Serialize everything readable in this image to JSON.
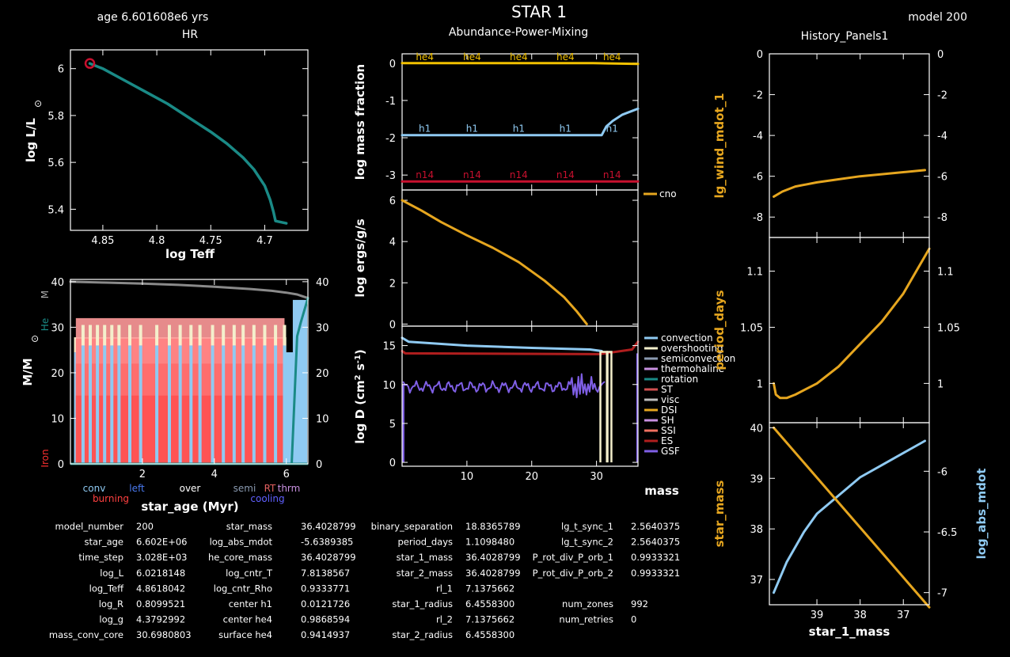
{
  "header": {
    "star_title": "STAR  1",
    "age_label": "age 6.601608e6 yrs",
    "model_label": "model 200",
    "subtitle_abundance": "Abundance-Power-Mixing",
    "subtitle_history": "History_Panels1"
  },
  "colors": {
    "teal": "#1a8a86",
    "orange": "#e6a61f",
    "gold": "#f2c100",
    "lightblue": "#8fcaf2",
    "crimson": "#c8102e",
    "purple": "#7f5fe6",
    "grey": "#8a8a8a",
    "cream": "#f4efcc",
    "conv_fill": "#8fcaf2",
    "burning_fill": "#ff3030"
  },
  "chart_data": [
    {
      "id": "hr",
      "type": "line",
      "title": "HR",
      "xlabel": "log Teff",
      "ylabel": "log L/L",
      "ylabel_sub": "⊙",
      "xlim": [
        4.88,
        4.66
      ],
      "ylim": [
        5.31,
        6.08
      ],
      "xticks": [
        "4.85",
        "4.8",
        "4.75",
        "4.7"
      ],
      "xtick_values": [
        4.85,
        4.8,
        4.75,
        4.7
      ],
      "yticks": [
        "5.4",
        "5.6",
        "5.8",
        "6"
      ],
      "ytick_values": [
        5.4,
        5.6,
        5.8,
        6.0
      ],
      "series": [
        {
          "x": [
            4.862,
            4.85,
            4.83,
            4.81,
            4.79,
            4.77,
            4.75,
            4.735,
            4.72,
            4.71,
            4.7,
            4.695,
            4.692,
            4.69,
            4.68
          ],
          "y": [
            6.022,
            6.0,
            5.95,
            5.9,
            5.85,
            5.79,
            5.73,
            5.68,
            5.62,
            5.57,
            5.5,
            5.44,
            5.39,
            5.35,
            5.34
          ]
        }
      ],
      "marker": {
        "x": 4.862,
        "y": 6.022
      }
    },
    {
      "id": "kippenhahn",
      "type": "area",
      "xlabel": "star_age (Myr)",
      "ylabel": "M/M",
      "ylabel_sub": "⊙",
      "xlim": [
        0,
        6.6
      ],
      "ylim": [
        0,
        40.5
      ],
      "xticks": [
        "2",
        "4",
        "6"
      ],
      "xtick_values": [
        2,
        4,
        6
      ],
      "yticks": [
        "0",
        "10",
        "20",
        "30",
        "40"
      ],
      "ytick_values": [
        0,
        10,
        20,
        30,
        40
      ],
      "left_tags": [
        "M",
        "He",
        "Iron"
      ],
      "mtotal": {
        "x": [
          0,
          1,
          2,
          3,
          4,
          5,
          5.6,
          6,
          6.3,
          6.6
        ],
        "y": [
          40,
          39.8,
          39.6,
          39.3,
          38.9,
          38.4,
          38,
          37.6,
          37.2,
          36.4
        ]
      },
      "he_core": {
        "x": [
          6.15,
          6.3,
          6.4,
          6.55,
          6.6
        ],
        "y": [
          0,
          28,
          31,
          35,
          36.4
        ]
      },
      "legend": [
        {
          "label": "conv",
          "color": "#8fcaf2"
        },
        {
          "label": "left",
          "color": "#4a7af0"
        },
        {
          "label": "over",
          "color": "#ffffff"
        },
        {
          "label": "semi",
          "color": "#8a9ab0"
        },
        {
          "label": "RT",
          "color": "#e36060"
        },
        {
          "label": "thrm",
          "color": "#c890e0"
        },
        {
          "label": "burning",
          "color": "#ff4040"
        },
        {
          "label": "cooling",
          "color": "#6060ff"
        }
      ]
    },
    {
      "id": "abundance",
      "type": "line",
      "ylabel": "log mass fraction",
      "xlim": [
        0,
        36.4
      ],
      "ylim": [
        -3.4,
        0.25
      ],
      "yticks": [
        "0",
        "-1",
        "-2",
        "-3"
      ],
      "ytick_values": [
        0,
        -1,
        -2,
        -3
      ],
      "series": [
        {
          "name": "he4",
          "x": [
            0,
            29.5,
            36.4
          ],
          "y": [
            0.0,
            0.0,
            -0.02
          ]
        },
        {
          "name": "h1",
          "x": [
            0,
            30.8,
            31.5,
            32.5,
            34,
            36.4
          ],
          "y": [
            -1.93,
            -1.93,
            -1.7,
            -1.55,
            -1.38,
            -1.22
          ]
        },
        {
          "name": "n14",
          "x": [
            0,
            36.4
          ],
          "y": [
            -3.17,
            -3.17
          ]
        }
      ]
    },
    {
      "id": "power",
      "type": "line",
      "ylabel": "log ergs/g/s",
      "xlim": [
        0,
        36.4
      ],
      "ylim": [
        -0.1,
        6.5
      ],
      "yticks": [
        "0",
        "2",
        "4",
        "6"
      ],
      "ytick_values": [
        0,
        2,
        4,
        6
      ],
      "series": [
        {
          "name": "cno",
          "x": [
            0,
            3,
            6,
            10,
            14,
            18,
            22,
            25,
            27,
            28.5
          ],
          "y": [
            6.0,
            5.5,
            4.95,
            4.3,
            3.7,
            3.0,
            2.1,
            1.3,
            0.6,
            0.0
          ]
        }
      ]
    },
    {
      "id": "mixing",
      "type": "line",
      "ylabel": "log D (cm",
      "xlabel": "mass",
      "xlim": [
        0,
        36.4
      ],
      "ylim": [
        -0.5,
        17.5
      ],
      "xticks": [
        "10",
        "20",
        "30"
      ],
      "xtick_values": [
        10,
        20,
        30
      ],
      "yticks": [
        "0",
        "5",
        "10",
        "15"
      ],
      "ytick_values": [
        0,
        5,
        10,
        15
      ],
      "series": [
        {
          "name": "convection",
          "x": [
            0,
            1,
            10,
            20,
            29,
            30.8
          ],
          "y": [
            16.0,
            15.5,
            15.0,
            14.7,
            14.5,
            14.3
          ]
        },
        {
          "name": "ES",
          "x": [
            0,
            0.5,
            30.5,
            35.5,
            36.4
          ],
          "y": [
            14.3,
            14.0,
            13.9,
            14.5,
            15.5
          ]
        },
        {
          "name": "GSF",
          "x": [
            0,
            31.2
          ],
          "y": [
            9.6,
            10.2
          ]
        }
      ],
      "legend": [
        {
          "label": "convection",
          "color": "#8fcaf2"
        },
        {
          "label": "overshooting",
          "color": "#f4efcc"
        },
        {
          "label": "semiconvection",
          "color": "#8a9ab0"
        },
        {
          "label": "thermohaline",
          "color": "#c890e0"
        },
        {
          "label": "rotation",
          "color": "#1a8a86"
        },
        {
          "label": "ST",
          "color": "#d05050"
        },
        {
          "label": "visc",
          "color": "#bbbbbb"
        },
        {
          "label": "DSI",
          "color": "#e6a61f"
        },
        {
          "label": "SH",
          "color": "#c890e0"
        },
        {
          "label": "SSI",
          "color": "#f07060"
        },
        {
          "label": "ES",
          "color": "#b01e1e"
        },
        {
          "label": "GSF",
          "color": "#7f5fe6"
        }
      ]
    },
    {
      "id": "hist_wind",
      "type": "line",
      "ylabel": "lg_wind_mdot_1",
      "xlim": [
        40.1,
        36.4
      ],
      "ylim": [
        -9,
        0
      ],
      "yticks": [
        "0",
        "-2",
        "-4",
        "-6",
        "-8"
      ],
      "ytick_values": [
        0,
        -2,
        -4,
        -6,
        -8
      ],
      "series": [
        {
          "x": [
            40,
            39.8,
            39.5,
            39,
            38.5,
            38,
            37.5,
            37,
            36.5
          ],
          "y": [
            -7.0,
            -6.75,
            -6.5,
            -6.3,
            -6.15,
            -6.0,
            -5.9,
            -5.8,
            -5.7
          ]
        }
      ]
    },
    {
      "id": "hist_period",
      "type": "line",
      "ylabel": "period_days",
      "xlim": [
        40.1,
        36.4
      ],
      "ylim": [
        0.965,
        1.13
      ],
      "yticks": [
        "1.1",
        "1.05",
        "1"
      ],
      "ytick_values": [
        1.1,
        1.05,
        1.0
      ],
      "series": [
        {
          "x": [
            40,
            39.95,
            39.85,
            39.7,
            39.5,
            39,
            38.5,
            38,
            37.5,
            37,
            36.7,
            36.4
          ],
          "y": [
            1.0,
            0.99,
            0.987,
            0.987,
            0.99,
            1.0,
            1.015,
            1.035,
            1.055,
            1.08,
            1.1,
            1.12
          ]
        }
      ]
    },
    {
      "id": "hist_mass",
      "type": "line",
      "ylabel": "star_mass",
      "ylabel_right": "log_abs_mdot",
      "xlabel": "star_1_mass",
      "xlim": [
        40.1,
        36.4
      ],
      "ylim": [
        36.5,
        40.1
      ],
      "y2lim": [
        -7.1,
        -5.6
      ],
      "xticks": [
        "39",
        "38",
        "37"
      ],
      "xtick_values": [
        39,
        38,
        37
      ],
      "yticks": [
        "40",
        "39",
        "38",
        "37"
      ],
      "ytick_values": [
        40,
        39,
        38,
        37
      ],
      "y2ticks": [
        "-6",
        "-6.5",
        "-7"
      ],
      "y2tick_values": [
        -6,
        -6.5,
        -7
      ],
      "series": [
        {
          "name": "star_mass",
          "x": [
            40,
            36.4
          ],
          "y": [
            40,
            36.45
          ]
        },
        {
          "name": "log_abs_mdot",
          "x": [
            40,
            39.7,
            39.3,
            39,
            38.5,
            38,
            37.5,
            37,
            36.5
          ],
          "y": [
            -7.0,
            -6.75,
            -6.5,
            -6.35,
            -6.2,
            -6.05,
            -5.95,
            -5.85,
            -5.75
          ]
        }
      ]
    }
  ],
  "info_table": [
    [
      {
        "k": "model_number",
        "v": "200"
      },
      {
        "k": "star_age",
        "v": "6.602E+06"
      },
      {
        "k": "time_step",
        "v": "3.028E+03"
      },
      {
        "k": "log_L",
        "v": "6.0218148"
      },
      {
        "k": "log_Teff",
        "v": "4.8618042"
      },
      {
        "k": "log_R",
        "v": "0.8099521"
      },
      {
        "k": "log_g",
        "v": "4.3792992"
      },
      {
        "k": "mass_conv_core",
        "v": "30.6980803"
      }
    ],
    [
      {
        "k": "star_mass",
        "v": "36.4028799"
      },
      {
        "k": "log_abs_mdot",
        "v": "-5.6389385"
      },
      {
        "k": "he_core_mass",
        "v": "36.4028799"
      },
      {
        "k": "log_cntr_T",
        "v": "7.8138567"
      },
      {
        "k": "log_cntr_Rho",
        "v": "0.9333771"
      },
      {
        "k": "center h1",
        "v": "0.0121726"
      },
      {
        "k": "center he4",
        "v": "0.9868594"
      },
      {
        "k": "surface he4",
        "v": "0.9414937"
      }
    ],
    [
      {
        "k": "binary_separation",
        "v": "18.8365789"
      },
      {
        "k": "period_days",
        "v": "1.1098480"
      },
      {
        "k": "star_1_mass",
        "v": "36.4028799"
      },
      {
        "k": "star_2_mass",
        "v": "36.4028799"
      },
      {
        "k": "rl_1",
        "v": "7.1375662"
      },
      {
        "k": "star_1_radius",
        "v": "6.4558300"
      },
      {
        "k": "rl_2",
        "v": "7.1375662"
      },
      {
        "k": "star_2_radius",
        "v": "6.4558300"
      }
    ],
    [
      {
        "k": "lg_t_sync_1",
        "v": "2.5640375"
      },
      {
        "k": "lg_t_sync_2",
        "v": "2.5640375"
      },
      {
        "k": "P_rot_div_P_orb_1",
        "v": "0.9933321"
      },
      {
        "k": "P_rot_div_P_orb_2",
        "v": "0.9933321"
      },
      {
        "k": "",
        "v": ""
      },
      {
        "k": "num_zones",
        "v": "992"
      },
      {
        "k": "num_retries",
        "v": "0"
      },
      {
        "k": "",
        "v": ""
      }
    ]
  ]
}
